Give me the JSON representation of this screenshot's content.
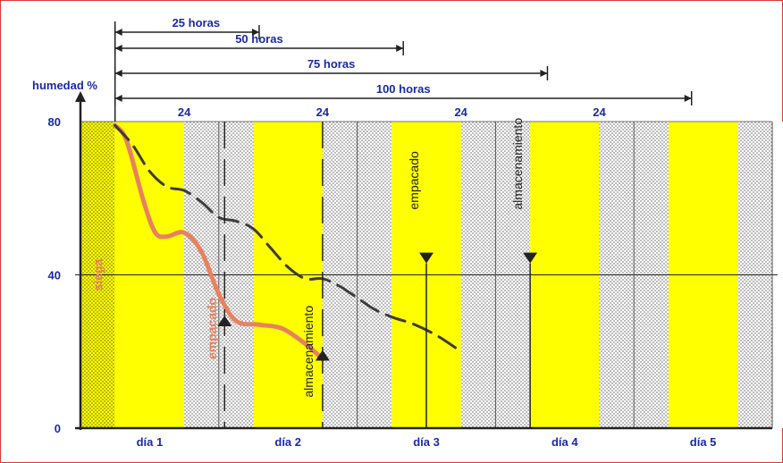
{
  "chart_data": {
    "type": "line",
    "ylabel": "humedad %",
    "ylim": [
      0,
      80
    ],
    "yticks": [
      0,
      40,
      80
    ],
    "xlim": [
      0,
      120
    ],
    "grid": "horizontal line at 40",
    "days": [
      "día 1",
      "día 2",
      "día 3",
      "día 4",
      "día 5"
    ],
    "bands": [
      {
        "kind": "night",
        "start": 0,
        "end": 6
      },
      {
        "kind": "day",
        "start": 6,
        "end": 18
      },
      {
        "kind": "dusk",
        "start": 18,
        "end": 24
      },
      {
        "kind": "night",
        "start": 24,
        "end": 30
      },
      {
        "kind": "day",
        "start": 30,
        "end": 42
      },
      {
        "kind": "dusk",
        "start": 42,
        "end": 48
      },
      {
        "kind": "night",
        "start": 48,
        "end": 54
      },
      {
        "kind": "day",
        "start": 54,
        "end": 66
      },
      {
        "kind": "dusk",
        "start": 66,
        "end": 72
      },
      {
        "kind": "night",
        "start": 72,
        "end": 78
      },
      {
        "kind": "day",
        "start": 78,
        "end": 90
      },
      {
        "kind": "dusk",
        "start": 90,
        "end": 96
      },
      {
        "kind": "night",
        "start": 96,
        "end": 102
      },
      {
        "kind": "day",
        "start": 102,
        "end": 114
      },
      {
        "kind": "dusk",
        "start": 114,
        "end": 120
      }
    ],
    "series": [
      {
        "style": "solid",
        "color": "#e8815f",
        "points": [
          [
            6,
            79
          ],
          [
            8,
            75
          ],
          [
            11,
            59
          ],
          [
            13,
            51
          ],
          [
            15,
            50
          ],
          [
            18,
            51
          ],
          [
            21,
            46
          ],
          [
            24,
            35
          ],
          [
            27,
            28
          ],
          [
            31,
            27
          ],
          [
            35,
            26
          ],
          [
            39,
            22
          ],
          [
            42,
            18
          ]
        ]
      },
      {
        "style": "dashed",
        "color": "#3c3c3c",
        "points": [
          [
            6,
            79
          ],
          [
            9,
            74
          ],
          [
            12,
            67
          ],
          [
            15,
            63
          ],
          [
            18,
            62
          ],
          [
            21,
            59
          ],
          [
            24,
            55
          ],
          [
            27,
            54
          ],
          [
            30,
            52
          ],
          [
            33,
            47
          ],
          [
            36,
            42
          ],
          [
            39,
            39
          ],
          [
            42,
            39
          ],
          [
            45,
            37
          ],
          [
            48,
            34
          ],
          [
            51,
            31
          ],
          [
            54,
            29
          ],
          [
            58,
            27
          ],
          [
            62,
            24
          ],
          [
            66,
            20
          ]
        ]
      }
    ],
    "markers": [
      {
        "x": 6,
        "label": "siega",
        "color": "#e8815f",
        "y_text": 40,
        "arrow": "none"
      },
      {
        "x": 25,
        "label": "empacado",
        "color": "#e8815f",
        "y_text": 26,
        "arrow": "up",
        "y_arrow": 28
      },
      {
        "x": 42,
        "label": "almacenamiento",
        "color": "#222222",
        "y_text": 20,
        "arrow": "up",
        "y_arrow": 19
      },
      {
        "x": 60,
        "label": "empacado",
        "color": "#222222",
        "y_text": 57,
        "arrow": "down",
        "y_arrow": 43
      },
      {
        "x": 78,
        "label": "almacenamiento",
        "color": "#222222",
        "y_text": 57,
        "arrow": "down",
        "y_arrow": 43
      }
    ],
    "day_length_label": "24",
    "day_length_ticks": [
      18,
      42,
      66,
      90
    ],
    "durations": [
      {
        "label": "25 horas",
        "start": 6,
        "end": 31
      },
      {
        "label": "50 horas",
        "start": 6,
        "end": 56
      },
      {
        "label": "75 horas",
        "start": 6,
        "end": 81
      },
      {
        "label": "100 horas",
        "start": 6,
        "end": 106
      }
    ],
    "colors": {
      "day": "#ffff00",
      "night": "#d6d600",
      "dusk": "#cfcfcf",
      "axis": "#222222",
      "label_blue": "#1a2aa8"
    }
  }
}
